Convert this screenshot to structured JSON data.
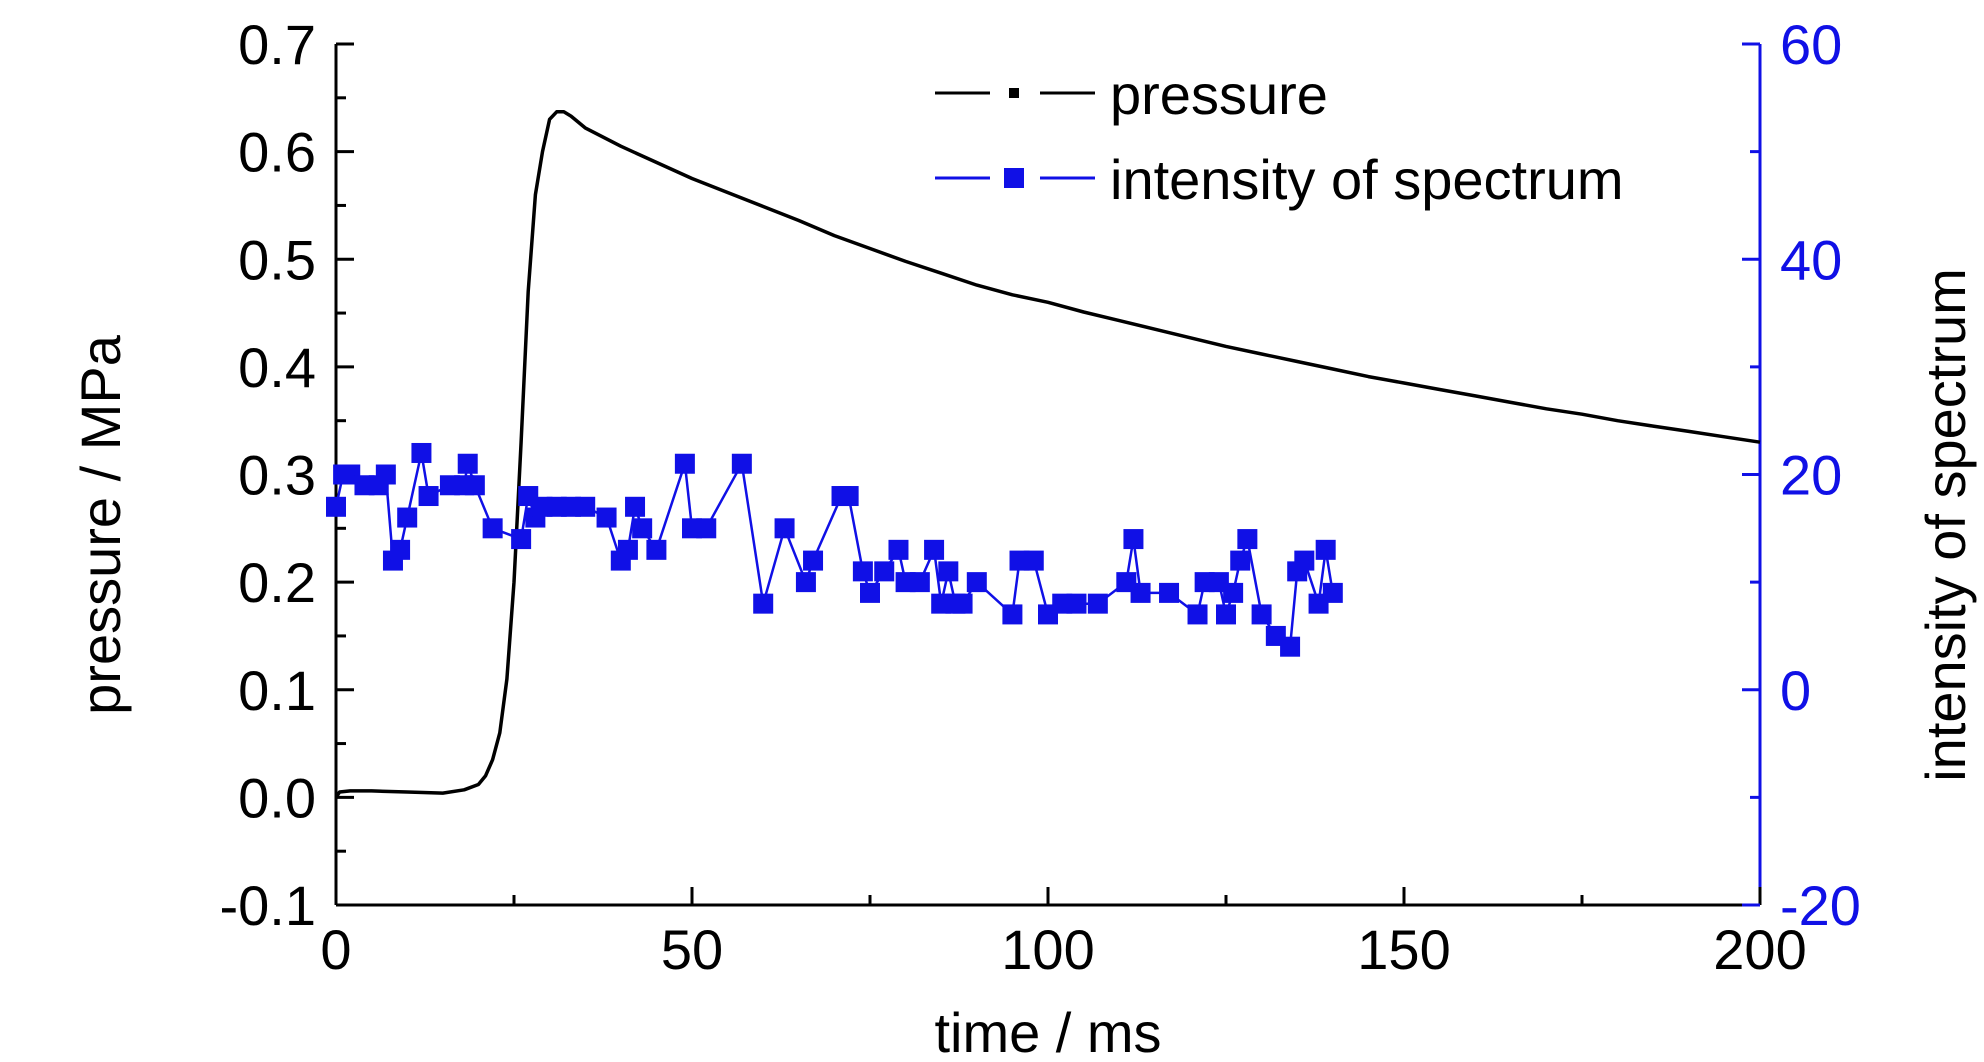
{
  "chart_data": {
    "type": "line",
    "xlabel": "time / ms",
    "ylabel_left": "pressure / MPa",
    "ylabel_right": "intensity of spectrum",
    "x_range": [
      0,
      200
    ],
    "y_left_range": [
      -0.1,
      0.7
    ],
    "y_right_range": [
      -20,
      60
    ],
    "x_ticks": [
      "0",
      "50",
      "100",
      "150",
      "200"
    ],
    "y_left_ticks": [
      "-0.1",
      "0.0",
      "0.1",
      "0.2",
      "0.3",
      "0.4",
      "0.5",
      "0.6",
      "0.7"
    ],
    "y_right_ticks": [
      "-20",
      "0",
      "20",
      "40",
      "60"
    ],
    "legend_position": "top-center",
    "colors": {
      "pressure": "#000000",
      "intensity": "#1010e6",
      "axis_left": "#000000",
      "axis_right": "#1010e6"
    },
    "series": [
      {
        "name": "pressure",
        "axis": "left",
        "color": "#000000",
        "points": [
          [
            0,
            0.0
          ],
          [
            0.5,
            0.005
          ],
          [
            2,
            0.006
          ],
          [
            5,
            0.006
          ],
          [
            10,
            0.005
          ],
          [
            15,
            0.004
          ],
          [
            18,
            0.007
          ],
          [
            20,
            0.012
          ],
          [
            21,
            0.02
          ],
          [
            22,
            0.035
          ],
          [
            23,
            0.06
          ],
          [
            24,
            0.11
          ],
          [
            25,
            0.2
          ],
          [
            26,
            0.33
          ],
          [
            27,
            0.47
          ],
          [
            28,
            0.56
          ],
          [
            29,
            0.6
          ],
          [
            30,
            0.63
          ],
          [
            31,
            0.637
          ],
          [
            32,
            0.637
          ],
          [
            33,
            0.633
          ],
          [
            35,
            0.622
          ],
          [
            40,
            0.605
          ],
          [
            45,
            0.59
          ],
          [
            50,
            0.575
          ],
          [
            55,
            0.562
          ],
          [
            60,
            0.549
          ],
          [
            65,
            0.536
          ],
          [
            70,
            0.522
          ],
          [
            75,
            0.51
          ],
          [
            80,
            0.498
          ],
          [
            85,
            0.487
          ],
          [
            90,
            0.476
          ],
          [
            95,
            0.467
          ],
          [
            100,
            0.46
          ],
          [
            105,
            0.451
          ],
          [
            110,
            0.443
          ],
          [
            115,
            0.435
          ],
          [
            120,
            0.427
          ],
          [
            125,
            0.419
          ],
          [
            130,
            0.412
          ],
          [
            135,
            0.405
          ],
          [
            140,
            0.398
          ],
          [
            145,
            0.391
          ],
          [
            150,
            0.385
          ],
          [
            155,
            0.379
          ],
          [
            160,
            0.373
          ],
          [
            165,
            0.367
          ],
          [
            170,
            0.361
          ],
          [
            175,
            0.356
          ],
          [
            180,
            0.35
          ],
          [
            185,
            0.345
          ],
          [
            190,
            0.34
          ],
          [
            195,
            0.335
          ],
          [
            200,
            0.33
          ]
        ]
      },
      {
        "name": "intensity of spectrum",
        "axis": "right",
        "color": "#1010e6",
        "points": [
          [
            0,
            17
          ],
          [
            1,
            20
          ],
          [
            2,
            20
          ],
          [
            4,
            19
          ],
          [
            6,
            19
          ],
          [
            7,
            20
          ],
          [
            8,
            12
          ],
          [
            9,
            13
          ],
          [
            10,
            16
          ],
          [
            12,
            22
          ],
          [
            13,
            18
          ],
          [
            16,
            19
          ],
          [
            18,
            19
          ],
          [
            18.5,
            21
          ],
          [
            19.5,
            19
          ],
          [
            22,
            15
          ],
          [
            26,
            14
          ],
          [
            27,
            18
          ],
          [
            28,
            16
          ],
          [
            29,
            17
          ],
          [
            31,
            17
          ],
          [
            33,
            17
          ],
          [
            35,
            17
          ],
          [
            38,
            16
          ],
          [
            40,
            12
          ],
          [
            41,
            13
          ],
          [
            42,
            17
          ],
          [
            43,
            15
          ],
          [
            45,
            13
          ],
          [
            49,
            21
          ],
          [
            50,
            15
          ],
          [
            52,
            15
          ],
          [
            57,
            21
          ],
          [
            60,
            8
          ],
          [
            63,
            15
          ],
          [
            66,
            10
          ],
          [
            67,
            12
          ],
          [
            71,
            18
          ],
          [
            72,
            18
          ],
          [
            74,
            11
          ],
          [
            75,
            9
          ],
          [
            77,
            11
          ],
          [
            79,
            13
          ],
          [
            80,
            10
          ],
          [
            82,
            10
          ],
          [
            84,
            13
          ],
          [
            85,
            8
          ],
          [
            86,
            11
          ],
          [
            87,
            8
          ],
          [
            88,
            8
          ],
          [
            90,
            10
          ],
          [
            95,
            7
          ],
          [
            96,
            12
          ],
          [
            98,
            12
          ],
          [
            100,
            7
          ],
          [
            102,
            8
          ],
          [
            104,
            8
          ],
          [
            107,
            8
          ],
          [
            111,
            10
          ],
          [
            112,
            14
          ],
          [
            113,
            9
          ],
          [
            117,
            9
          ],
          [
            121,
            7
          ],
          [
            122,
            10
          ],
          [
            124,
            10
          ],
          [
            125,
            7
          ],
          [
            126,
            9
          ],
          [
            127,
            12
          ],
          [
            128,
            14
          ],
          [
            130,
            7
          ],
          [
            132,
            5
          ],
          [
            134,
            4
          ],
          [
            135,
            11
          ],
          [
            136,
            12
          ],
          [
            138,
            8
          ],
          [
            139,
            13
          ],
          [
            140,
            9
          ]
        ]
      }
    ]
  }
}
